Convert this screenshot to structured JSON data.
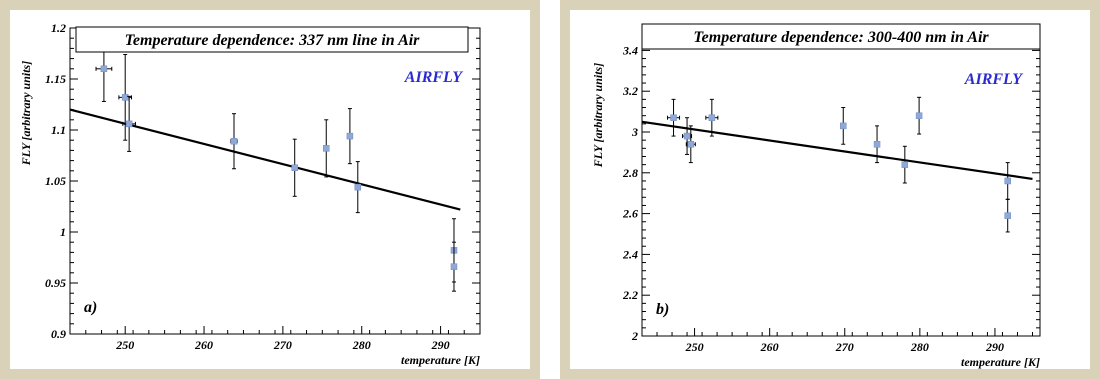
{
  "chart_data": [
    {
      "type": "scatter",
      "title": "Temperature dependence: 337 nm line in Air",
      "annotation": "AIRFLY",
      "panel_label": "a)",
      "xlabel": "temperature [K]",
      "ylabel": "FLY [arbitrary units]",
      "xlim": [
        243,
        295
      ],
      "ylim": [
        0.9,
        1.2
      ],
      "x_ticks": [
        250,
        260,
        270,
        280,
        290
      ],
      "x_tick_labels": [
        "250",
        "260",
        "270",
        "280",
        "290"
      ],
      "y_ticks": [
        0.9,
        0.95,
        1.0,
        1.05,
        1.1,
        1.15,
        1.2
      ],
      "y_tick_labels": [
        "0.9",
        "0.95",
        "1",
        "1.05",
        "1.1",
        "1.15",
        "1.2"
      ],
      "fit_line": {
        "x": [
          243,
          292.5
        ],
        "y": [
          1.12,
          1.022
        ]
      },
      "points": [
        {
          "x": 247.3,
          "y": 1.16,
          "yerr": 0.032,
          "xerr": 1.0
        },
        {
          "x": 250.0,
          "y": 1.132,
          "yerr": 0.042,
          "xerr": 0.8
        },
        {
          "x": 250.5,
          "y": 1.106,
          "yerr": 0.027,
          "xerr": 0.8
        },
        {
          "x": 263.8,
          "y": 1.089,
          "yerr": 0.027,
          "xerr": 0.4
        },
        {
          "x": 271.5,
          "y": 1.063,
          "yerr": 0.028,
          "xerr": 0.3
        },
        {
          "x": 275.5,
          "y": 1.082,
          "yerr": 0.028,
          "xerr": 0.3
        },
        {
          "x": 278.5,
          "y": 1.094,
          "yerr": 0.027,
          "xerr": 0.3
        },
        {
          "x": 279.5,
          "y": 1.044,
          "yerr": 0.025,
          "xerr": 0.3
        },
        {
          "x": 291.7,
          "y": 0.982,
          "yerr": 0.031,
          "xerr": 0.3
        },
        {
          "x": 291.7,
          "y": 0.966,
          "yerr": 0.024,
          "xerr": 0.3
        }
      ]
    },
    {
      "type": "scatter",
      "title": "Temperature dependence: 300-400 nm in Air",
      "annotation": "AIRFLY",
      "panel_label": "b)",
      "xlabel": "temperature [K]",
      "ylabel": "FLY [arbitrary units]",
      "xlim": [
        243,
        296
      ],
      "ylim": [
        2.0,
        3.5
      ],
      "x_ticks": [
        250,
        260,
        270,
        280,
        290
      ],
      "x_tick_labels": [
        "250",
        "260",
        "270",
        "280",
        "290"
      ],
      "y_ticks": [
        2.0,
        2.2,
        2.4,
        2.6,
        2.8,
        3.0,
        3.2,
        3.4
      ],
      "y_tick_labels": [
        "2",
        "2.2",
        "2.4",
        "2.6",
        "2.8",
        "3",
        "3.2",
        "3.4"
      ],
      "fit_line": {
        "x": [
          243,
          295
        ],
        "y": [
          3.05,
          2.77
        ]
      },
      "points": [
        {
          "x": 247.2,
          "y": 3.07,
          "yerr": 0.09,
          "xerr": 0.8
        },
        {
          "x": 249.0,
          "y": 2.98,
          "yerr": 0.09,
          "xerr": 0.6
        },
        {
          "x": 249.5,
          "y": 2.94,
          "yerr": 0.09,
          "xerr": 0.6
        },
        {
          "x": 252.3,
          "y": 3.07,
          "yerr": 0.09,
          "xerr": 0.8
        },
        {
          "x": 269.8,
          "y": 3.03,
          "yerr": 0.09,
          "xerr": 0.3
        },
        {
          "x": 274.3,
          "y": 2.94,
          "yerr": 0.09,
          "xerr": 0.3
        },
        {
          "x": 278.0,
          "y": 2.84,
          "yerr": 0.09,
          "xerr": 0.3
        },
        {
          "x": 279.9,
          "y": 3.08,
          "yerr": 0.09,
          "xerr": 0.3
        },
        {
          "x": 291.7,
          "y": 2.76,
          "yerr": 0.09,
          "xerr": 0.3
        },
        {
          "x": 291.7,
          "y": 2.59,
          "yerr": 0.08,
          "xerr": 0.3
        }
      ]
    }
  ]
}
